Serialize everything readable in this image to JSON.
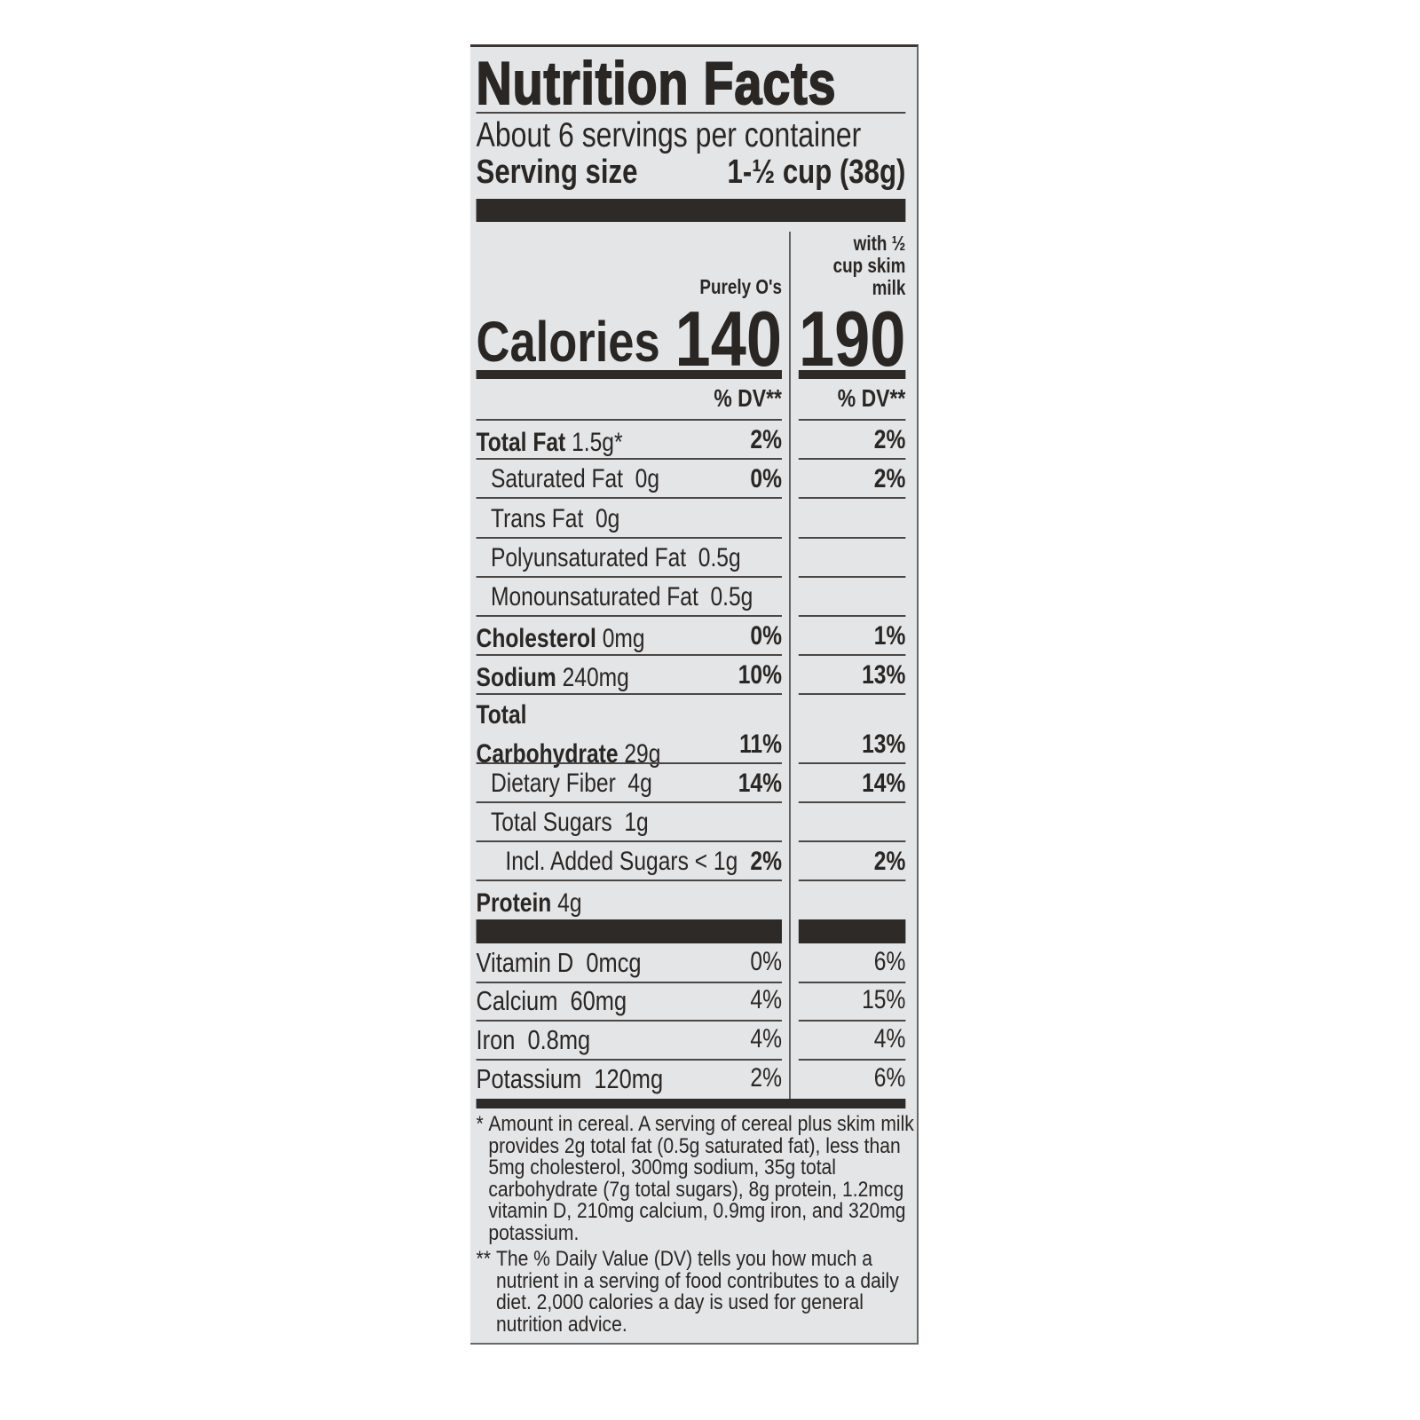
{
  "title": "Nutrition Facts",
  "servings_per_container": "About 6 servings per container",
  "serving_size_label": "Serving size",
  "serving_size_value": "1-½ cup (38g)",
  "columns": [
    {
      "header": "Purely O's",
      "calories": "140",
      "dv_header": "% DV**"
    },
    {
      "header": "with ½\ncup skim\nmilk",
      "calories": "190",
      "dv_header": "% DV**"
    }
  ],
  "calories_label": "Calories",
  "nutrients": [
    {
      "name": "Total Fat",
      "amount": "1.5g*",
      "dv1": "2%",
      "dv2": "2%",
      "indent": 0,
      "bold": true
    },
    {
      "name": "",
      "amount": "Saturated Fat  0g",
      "dv1": "0%",
      "dv2": "2%",
      "indent": 1
    },
    {
      "name": "",
      "amount": "Trans Fat  0g",
      "dv1": "",
      "dv2": "",
      "indent": 1
    },
    {
      "name": "",
      "amount": "Polyunsaturated Fat  0.5g",
      "dv1": "",
      "dv2": "",
      "indent": 1
    },
    {
      "name": "",
      "amount": "Monounsaturated Fat  0.5g",
      "dv1": "",
      "dv2": "",
      "indent": 1
    },
    {
      "name": "Cholesterol",
      "amount": "0mg",
      "dv1": "0%",
      "dv2": "1%",
      "indent": 0
    },
    {
      "name": "Sodium",
      "amount": "240mg",
      "dv1": "10%",
      "dv2": "13%",
      "indent": 0
    },
    {
      "name": "Total\nCarbohydrate",
      "amount": "29g",
      "dv1": "11%",
      "dv2": "13%",
      "indent": 0
    },
    {
      "name": "",
      "amount": "Dietary Fiber  4g",
      "dv1": "14%",
      "dv2": "14%",
      "indent": 1
    },
    {
      "name": "",
      "amount": "Total Sugars  1g",
      "dv1": "",
      "dv2": "",
      "indent": 1
    },
    {
      "name": "",
      "amount": "Incl. Added Sugars < 1g",
      "dv1": "2%",
      "dv2": "2%",
      "indent": 2
    },
    {
      "name": "Protein",
      "amount": "4g",
      "dv1": "",
      "dv2": "",
      "indent": 0
    }
  ],
  "vitamins": [
    {
      "amount": "Vitamin D  0mcg",
      "dv1": "0%",
      "dv2": "6%"
    },
    {
      "amount": "Calcium  60mg",
      "dv1": "4%",
      "dv2": "15%"
    },
    {
      "amount": "Iron  0.8mg",
      "dv1": "4%",
      "dv2": "4%"
    },
    {
      "amount": "Potassium  120mg",
      "dv1": "2%",
      "dv2": "6%"
    }
  ],
  "footnotes": [
    {
      "mark": "*",
      "text": "Amount in cereal. A serving of cereal plus skim milk\nprovides 2g total fat (0.5g saturated fat), less than\n5mg cholesterol, 300mg sodium, 35g total\ncarbohydrate (7g total sugars), 8g protein, 1.2mcg\nvitamin D, 210mg calcium, 0.9mg iron, and 320mg\npotassium."
    },
    {
      "mark": "**",
      "text": "The % Daily Value (DV) tells you how much a\nnutrient in a serving of food contributes to a daily\ndiet. 2,000 calories a day is used for general\nnutrition advice."
    }
  ]
}
